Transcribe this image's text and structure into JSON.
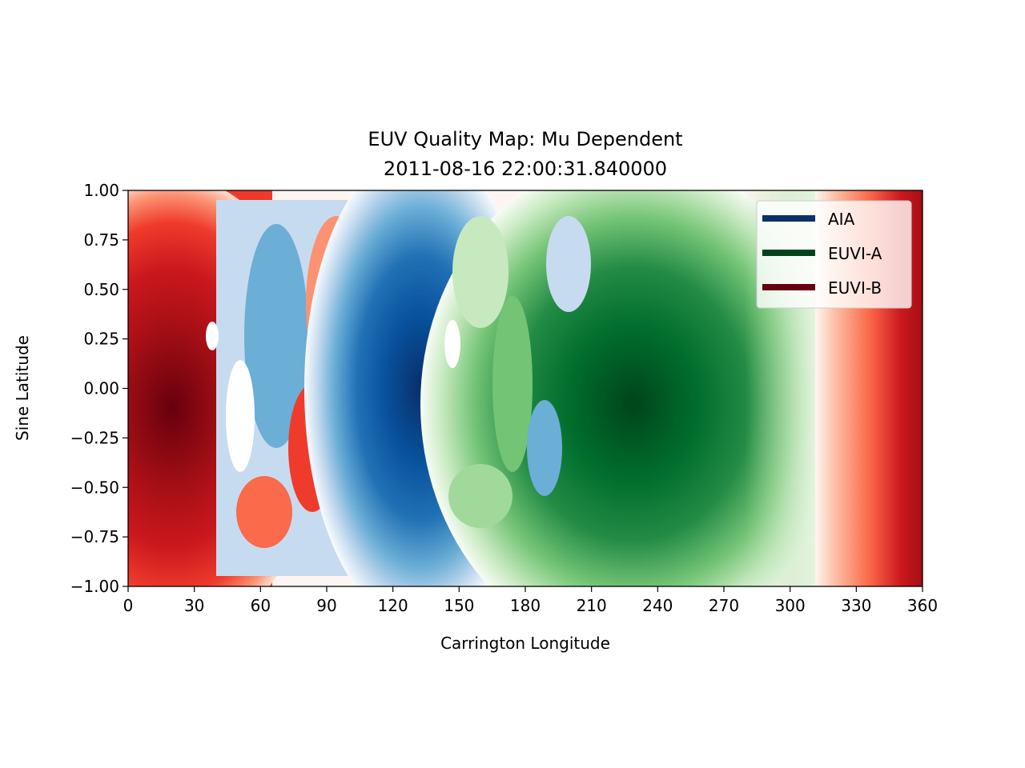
{
  "chart_data": {
    "type": "heatmap",
    "title": "EUV Quality Map: Mu Dependent",
    "subtitle": "2011-08-16 22:00:31.840000",
    "xlabel": "Carrington Longitude",
    "ylabel": "Sine Latitude",
    "xlim": [
      0,
      360
    ],
    "ylim": [
      -1.0,
      1.0
    ],
    "xticks": [
      "0",
      "30",
      "60",
      "90",
      "120",
      "150",
      "180",
      "210",
      "240",
      "270",
      "300",
      "330",
      "360"
    ],
    "yticks": [
      "1.00",
      "0.75",
      "0.50",
      "0.25",
      "0.00",
      "−0.25",
      "−0.50",
      "−0.75",
      "−1.00"
    ],
    "grid": false,
    "legend_position": "top-right",
    "series": [
      {
        "name": "AIA",
        "color": "#08306b",
        "colormap": "Blues",
        "peak_longitude": 135,
        "peak_latitude": -0.1
      },
      {
        "name": "EUVI-A",
        "color": "#00441b",
        "colormap": "Greens",
        "peak_longitude": 228,
        "peak_latitude": -0.1
      },
      {
        "name": "EUVI-B",
        "color": "#67000d",
        "colormap": "Reds",
        "peak_longitude": 20,
        "peak_latitude": -0.1
      }
    ],
    "regions": [
      {
        "instrument": "EUVI-B",
        "from_longitude": 0,
        "to_longitude": 40
      },
      {
        "instrument": "EUVI-B / AIA mixed",
        "from_longitude": 40,
        "to_longitude": 115
      },
      {
        "instrument": "AIA",
        "from_longitude": 115,
        "to_longitude": 140
      },
      {
        "instrument": "AIA / EUVI-A mixed",
        "from_longitude": 140,
        "to_longitude": 212
      },
      {
        "instrument": "EUVI-A",
        "from_longitude": 212,
        "to_longitude": 312
      },
      {
        "instrument": "EUVI-B",
        "from_longitude": 312,
        "to_longitude": 360
      }
    ]
  }
}
